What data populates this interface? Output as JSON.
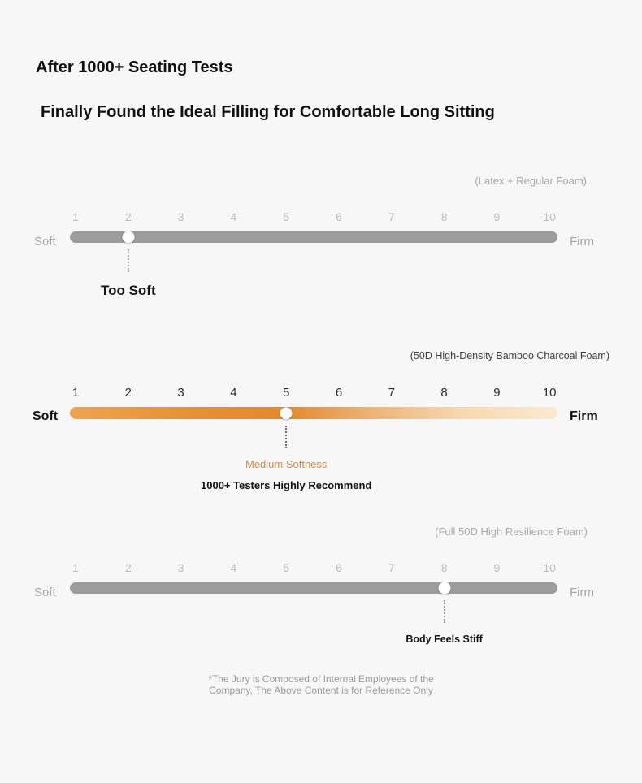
{
  "page": {
    "background_color": "#f7f7f7",
    "title_line1": "After 1000+ Seating Tests",
    "title_line2": "Finally Found the Ideal Filling for Comfortable Long Sitting"
  },
  "scales": [
    {
      "caption": "(Latex + Regular Foam)",
      "soft_label": "Soft",
      "firm_label": "Firm",
      "ticks": [
        "1",
        "2",
        "3",
        "4",
        "5",
        "6",
        "7",
        "8",
        "9",
        "10"
      ],
      "value": 2,
      "annotations": [
        "Too Soft"
      ],
      "bar_color": "#9c9c9c",
      "text_color": "#a8a8a8"
    },
    {
      "caption": "(50D High-Density Bamboo Charcoal Foam)",
      "soft_label": "Soft",
      "firm_label": "Firm",
      "ticks": [
        "1",
        "2",
        "3",
        "4",
        "5",
        "6",
        "7",
        "8",
        "9",
        "10"
      ],
      "value": 5,
      "annotations": [
        "Medium Softness",
        "1000+ Testers Highly Recommend"
      ],
      "bar_gradient": [
        "#eea352",
        "#e2892c",
        "#fbe9d0"
      ],
      "accent_color": "#dd8a3c",
      "text_color": "#1a1a1a"
    },
    {
      "caption": "(Full 50D High Resilience Foam)",
      "soft_label": "Soft",
      "firm_label": "Firm",
      "ticks": [
        "1",
        "2",
        "3",
        "4",
        "5",
        "6",
        "7",
        "8",
        "9",
        "10"
      ],
      "value": 8,
      "annotations": [
        "Body Feels Stiff"
      ],
      "bar_color": "#9c9c9c",
      "text_color": "#a8a8a8"
    }
  ],
  "footer": {
    "line1": "*The Jury is Composed of Internal Employees of the",
    "line2": "Company, The Above Content is for Reference Only"
  },
  "chart_data": {
    "type": "scatter",
    "title": "Seat cushion softness comparison (1 = Soft, 10 = Firm)",
    "x_range": [
      1,
      10
    ],
    "tick_labels": [
      "1",
      "2",
      "3",
      "4",
      "5",
      "6",
      "7",
      "8",
      "9",
      "10"
    ],
    "end_labels": [
      "Soft",
      "Firm"
    ],
    "series": [
      {
        "name": "(Latex + Regular Foam)",
        "value": 2,
        "annotation": "Too Soft"
      },
      {
        "name": "(50D High-Density Bamboo Charcoal Foam)",
        "value": 5,
        "annotation": "Medium Softness",
        "annotation2": "1000+ Testers Highly Recommend"
      },
      {
        "name": "(Full 50D High Resilience Foam)",
        "value": 8,
        "annotation": "Body Feels Stiff"
      }
    ],
    "legend_position": "none",
    "grid": false
  }
}
